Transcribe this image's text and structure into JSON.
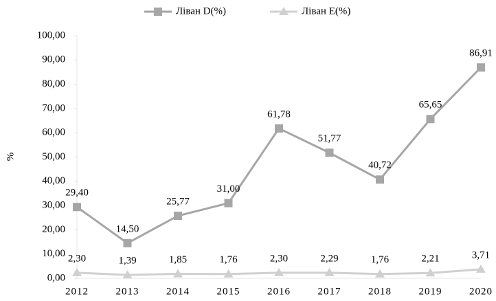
{
  "chart_data": {
    "type": "line",
    "y_label": "%",
    "categories": [
      "2012",
      "2013",
      "2014",
      "2015",
      "2016",
      "2017",
      "2018",
      "2019",
      "2020"
    ],
    "series": [
      {
        "name": "Ліван D(%)",
        "color": "#a6a6a6",
        "marker": "square",
        "values": [
          29.4,
          14.5,
          25.77,
          31.0,
          61.78,
          51.77,
          40.72,
          65.65,
          86.91
        ],
        "value_labels": [
          "29,40",
          "14,50",
          "25,77",
          "31,00",
          "61,78",
          "51,77",
          "40,72",
          "65,65",
          "86,91"
        ]
      },
      {
        "name": "Ліван E(%)",
        "color": "#d0d0d0",
        "marker": "triangle",
        "values": [
          2.3,
          1.39,
          1.85,
          1.76,
          2.3,
          2.29,
          1.76,
          2.21,
          3.71
        ],
        "value_labels": [
          "2,30",
          "1,39",
          "1,85",
          "1,76",
          "2,30",
          "2,29",
          "1,76",
          "2,21",
          "3,71"
        ]
      }
    ],
    "ylim": [
      0,
      100
    ],
    "yticks": [
      {
        "value": 0,
        "label": "0,00"
      },
      {
        "value": 10,
        "label": "10,00"
      },
      {
        "value": 20,
        "label": "20,00"
      },
      {
        "value": 30,
        "label": "30,00"
      },
      {
        "value": 40,
        "label": "40,00"
      },
      {
        "value": 50,
        "label": "50,00"
      },
      {
        "value": 60,
        "label": "60,00"
      },
      {
        "value": 70,
        "label": "70,00"
      },
      {
        "value": 80,
        "label": "80,00"
      },
      {
        "value": 90,
        "label": "90,00"
      },
      {
        "value": 100,
        "label": "100,00"
      }
    ],
    "grid": false,
    "legend": "top"
  }
}
